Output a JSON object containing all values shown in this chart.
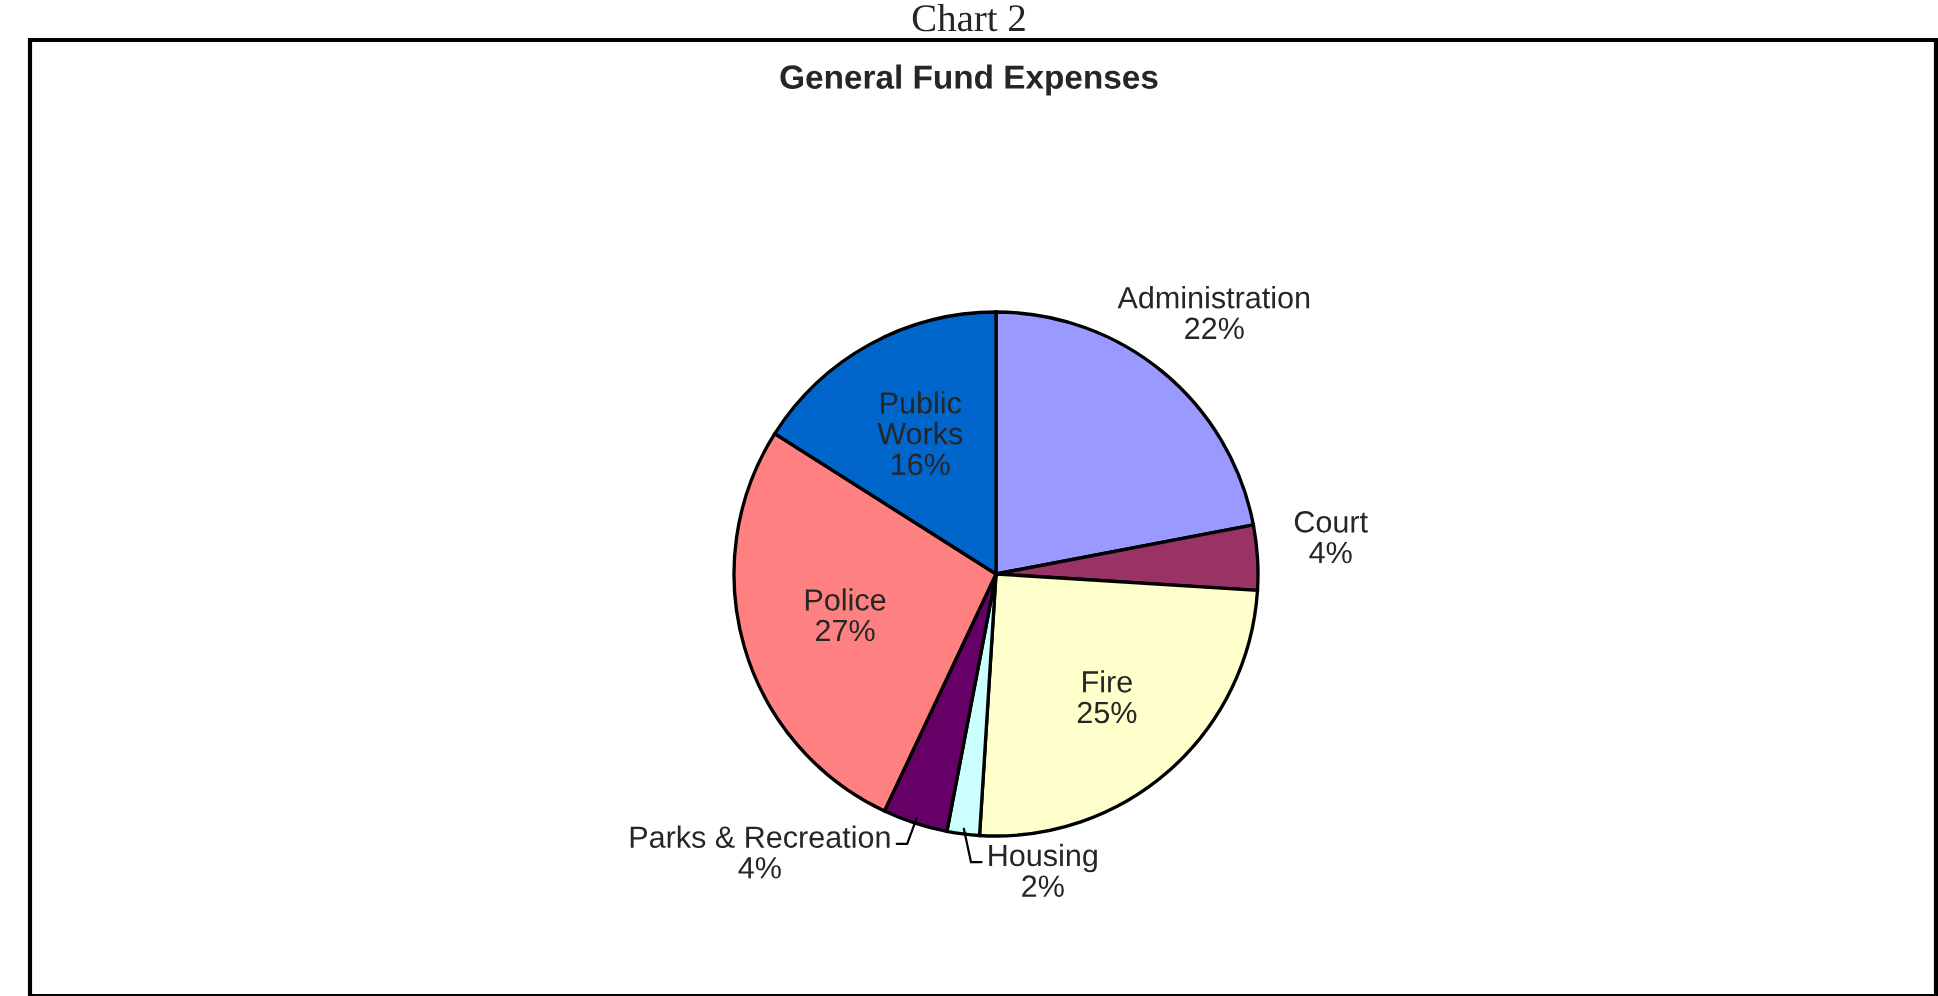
{
  "chart_data": {
    "type": "pie",
    "title": "General Fund Expenses",
    "annotations": [
      "Chart 2"
    ],
    "categories": [
      "Administration",
      "Court",
      "Fire",
      "Housing",
      "Parks & Recreation",
      "Police",
      "Public Works"
    ],
    "values": [
      22,
      4,
      25,
      2,
      4,
      27,
      16
    ],
    "colors": [
      "#9999ff",
      "#993366",
      "#ffffcc",
      "#ccffff",
      "#660066",
      "#ff8080",
      "#0066cc"
    ],
    "value_labels": [
      "22%",
      "4%",
      "25%",
      "2%",
      "4%",
      "27%",
      "16%"
    ]
  }
}
